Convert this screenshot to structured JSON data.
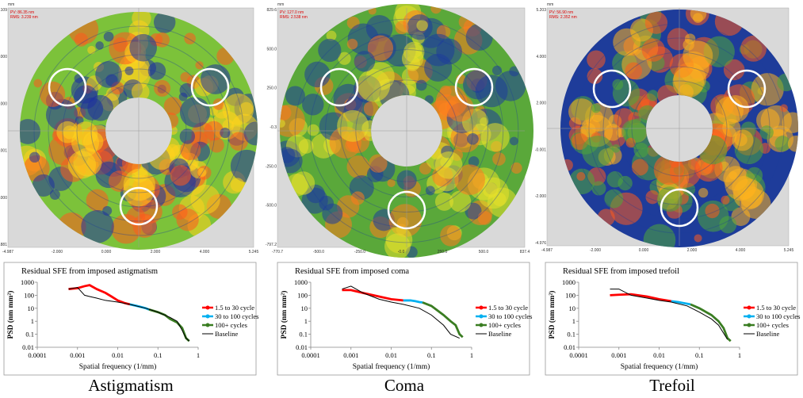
{
  "figure": {
    "panels": [
      {
        "caption": "Astigmatism",
        "unit": "mm",
        "pv": "PV: 86.35 nm",
        "rms": "RMS: 3.239 nm",
        "yticks": [
          "5.109",
          "4.000",
          "2.000",
          "0.001",
          "-2.000",
          "-4.881"
        ],
        "xticks": [
          "-4.987",
          "-2.000",
          "0.000",
          "2.000",
          "4.000",
          "5.245"
        ]
      },
      {
        "caption": "Coma",
        "unit": "mm",
        "pv": "PV: 127.0 nm",
        "rms": "RMS: 2.538 nm",
        "yticks": [
          "829.6",
          "500.0",
          "250.0",
          "-0.3",
          "-250.0",
          "-500.0",
          "-797.2"
        ],
        "xticks": [
          "-770.7",
          "-500.0",
          "-250.0",
          "-0.0",
          "250.0",
          "500.0",
          "837.4"
        ]
      },
      {
        "caption": "Trefoil",
        "unit": "mm",
        "pv": "PV: 56.90 nm",
        "rms": "RMS: 2.352 nm",
        "yticks": [
          "5.203",
          "4.000",
          "2.000",
          "-0.001",
          "-2.000",
          "-4.976"
        ],
        "xticks": [
          "-4.987",
          "-2.000",
          "0.000",
          "2.000",
          "4.000",
          "5.245"
        ]
      }
    ]
  },
  "chart_data": [
    {
      "type": "line",
      "title": "Residual SFE from imposed astigmatism",
      "x_label": "Spatial frequency (1/mm)",
      "y_label": "PSD (nm mm²)",
      "log_x": true,
      "log_y": true,
      "xlim": [
        0.0001,
        1
      ],
      "ylim": [
        0.01,
        1000
      ],
      "xticks": [
        0.0001,
        0.001,
        0.01,
        0.1,
        1
      ],
      "yticks": [
        0.01,
        0.1,
        1,
        10,
        100,
        1000
      ],
      "legend": "right",
      "series": [
        {
          "name": "1.5 to 30 cycle",
          "color": "#ff0000",
          "x": [
            0.0006,
            0.001,
            0.0015,
            0.002,
            0.003,
            0.005,
            0.007,
            0.01,
            0.015,
            0.02
          ],
          "values": [
            300,
            350,
            500,
            600,
            300,
            150,
            80,
            40,
            25,
            20
          ]
        },
        {
          "name": "30 to 100 cycles",
          "color": "#00b0f0",
          "x": [
            0.02,
            0.03,
            0.04,
            0.05,
            0.06
          ],
          "values": [
            20,
            15,
            12,
            10,
            8
          ]
        },
        {
          "name": "100+ cycles",
          "color": "#3a7d22",
          "x": [
            0.06,
            0.1,
            0.15,
            0.2,
            0.3,
            0.4,
            0.5,
            0.6
          ],
          "values": [
            8,
            5,
            3,
            1.5,
            0.8,
            0.3,
            0.05,
            0.03
          ]
        },
        {
          "name": "Baseline",
          "color": "#000000",
          "x": [
            0.0006,
            0.001,
            0.0015,
            0.002,
            0.003,
            0.005,
            0.01,
            0.02,
            0.05,
            0.1,
            0.2,
            0.3,
            0.4,
            0.5,
            0.6
          ],
          "values": [
            300,
            400,
            100,
            80,
            60,
            40,
            30,
            20,
            10,
            5,
            2,
            1,
            0.2,
            0.05,
            0.03
          ]
        }
      ]
    },
    {
      "type": "line",
      "title": "Residual SFE from imposed coma",
      "x_label": "Spatial frequency (1/mm)",
      "y_label": "PSD (nm mm²)",
      "log_x": true,
      "log_y": true,
      "xlim": [
        0.0001,
        1
      ],
      "ylim": [
        0.01,
        1000
      ],
      "xticks": [
        0.0001,
        0.001,
        0.01,
        0.1,
        1
      ],
      "yticks": [
        0.01,
        0.1,
        1,
        10,
        100,
        1000
      ],
      "legend": "right",
      "series": [
        {
          "name": "1.5 to 30 cycle",
          "color": "#ff0000",
          "x": [
            0.0006,
            0.001,
            0.002,
            0.005,
            0.01,
            0.02
          ],
          "values": [
            250,
            250,
            150,
            80,
            50,
            40
          ]
        },
        {
          "name": "30 to 100 cycles",
          "color": "#00b0f0",
          "x": [
            0.02,
            0.03,
            0.04,
            0.05,
            0.06
          ],
          "values": [
            40,
            40,
            35,
            30,
            28
          ]
        },
        {
          "name": "100+ cycles",
          "color": "#3a7d22",
          "x": [
            0.06,
            0.1,
            0.2,
            0.3,
            0.4,
            0.5,
            0.6
          ],
          "values": [
            28,
            15,
            3,
            1,
            0.5,
            0.1,
            0.06
          ]
        },
        {
          "name": "Baseline",
          "color": "#000000",
          "x": [
            0.0006,
            0.001,
            0.002,
            0.005,
            0.01,
            0.02,
            0.05,
            0.1,
            0.2,
            0.3,
            0.5
          ],
          "values": [
            300,
            500,
            150,
            50,
            30,
            20,
            10,
            3,
            0.5,
            0.1,
            0.05
          ]
        }
      ]
    },
    {
      "type": "line",
      "title": "Residual SFE from imposed trefoil",
      "x_label": "Spatial frequency (1/mm)",
      "y_label": "PSD (nm mm²)",
      "log_x": true,
      "log_y": true,
      "xlim": [
        0.0001,
        1
      ],
      "ylim": [
        0.01,
        1000
      ],
      "xticks": [
        0.0001,
        0.001,
        0.01,
        0.1,
        1
      ],
      "yticks": [
        0.01,
        0.1,
        1,
        10,
        100,
        1000
      ],
      "legend": "right",
      "series": [
        {
          "name": "1.5 to 30 cycle",
          "color": "#ff0000",
          "x": [
            0.0006,
            0.001,
            0.002,
            0.005,
            0.01,
            0.02
          ],
          "values": [
            100,
            110,
            120,
            80,
            50,
            35
          ]
        },
        {
          "name": "30 to 100 cycles",
          "color": "#00b0f0",
          "x": [
            0.02,
            0.03,
            0.04,
            0.05,
            0.06
          ],
          "values": [
            35,
            30,
            25,
            22,
            20
          ]
        },
        {
          "name": "100+ cycles",
          "color": "#3a7d22",
          "x": [
            0.06,
            0.1,
            0.2,
            0.3,
            0.4,
            0.5,
            0.6
          ],
          "values": [
            20,
            10,
            3,
            1,
            0.3,
            0.05,
            0.03
          ]
        },
        {
          "name": "Baseline",
          "color": "#000000",
          "x": [
            0.0006,
            0.001,
            0.002,
            0.005,
            0.01,
            0.02,
            0.05,
            0.1,
            0.2,
            0.3,
            0.5
          ],
          "values": [
            300,
            300,
            100,
            60,
            40,
            30,
            15,
            5,
            1.5,
            0.5,
            0.04
          ]
        }
      ]
    }
  ]
}
